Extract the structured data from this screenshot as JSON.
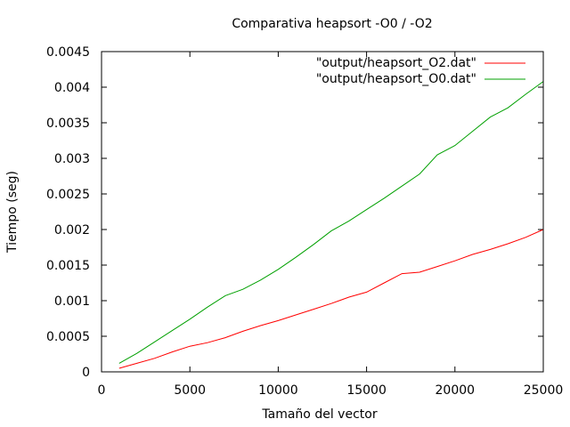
{
  "chart_data": {
    "type": "line",
    "title": "Comparativa heapsort -O0 / -O2",
    "xlabel": "Tamaño del vector",
    "ylabel": "Tiempo (seg)",
    "xlim": [
      0,
      25000
    ],
    "ylim": [
      0,
      0.0045
    ],
    "xticks": [
      0,
      5000,
      10000,
      15000,
      20000,
      25000
    ],
    "xtick_labels": [
      "0",
      "5000",
      "10000",
      "15000",
      "20000",
      "25000"
    ],
    "yticks": [
      0,
      0.0005,
      0.001,
      0.0015,
      0.002,
      0.0025,
      0.003,
      0.0035,
      0.004,
      0.0045
    ],
    "ytick_labels": [
      "0",
      "0.0005",
      "0.001",
      "0.0015",
      "0.002",
      "0.0025",
      "0.003",
      "0.0035",
      "0.004",
      "0.0045"
    ],
    "legend_position": "top-right",
    "grid": false,
    "series": [
      {
        "name": "\"output/heapsort_O2.dat\"",
        "color": "#ff0000",
        "x": [
          1000,
          2000,
          3000,
          4000,
          5000,
          6000,
          7000,
          8000,
          9000,
          10000,
          11000,
          12000,
          13000,
          14000,
          15000,
          16000,
          17000,
          18000,
          19000,
          20000,
          21000,
          22000,
          23000,
          24000,
          25000
        ],
        "y": [
          5e-05,
          0.00012,
          0.00019,
          0.00028,
          0.00036,
          0.00041,
          0.00048,
          0.00057,
          0.00065,
          0.00072,
          0.0008,
          0.00088,
          0.00096,
          0.00105,
          0.00112,
          0.00125,
          0.00138,
          0.0014,
          0.00148,
          0.00156,
          0.00165,
          0.00172,
          0.0018,
          0.00189,
          0.002
        ]
      },
      {
        "name": "\"output/heapsort_O0.dat\"",
        "color": "#00a000",
        "x": [
          1000,
          2000,
          3000,
          4000,
          5000,
          6000,
          7000,
          8000,
          9000,
          10000,
          11000,
          12000,
          13000,
          14000,
          15000,
          16000,
          17000,
          18000,
          19000,
          20000,
          21000,
          22000,
          23000,
          24000,
          25000
        ],
        "y": [
          0.00012,
          0.00026,
          0.00042,
          0.00058,
          0.00074,
          0.00091,
          0.00107,
          0.00116,
          0.00129,
          0.00144,
          0.00161,
          0.00179,
          0.00198,
          0.00212,
          0.00228,
          0.00244,
          0.00261,
          0.00278,
          0.00305,
          0.00318,
          0.00338,
          0.00358,
          0.00371,
          0.0039,
          0.00408
        ]
      }
    ]
  }
}
